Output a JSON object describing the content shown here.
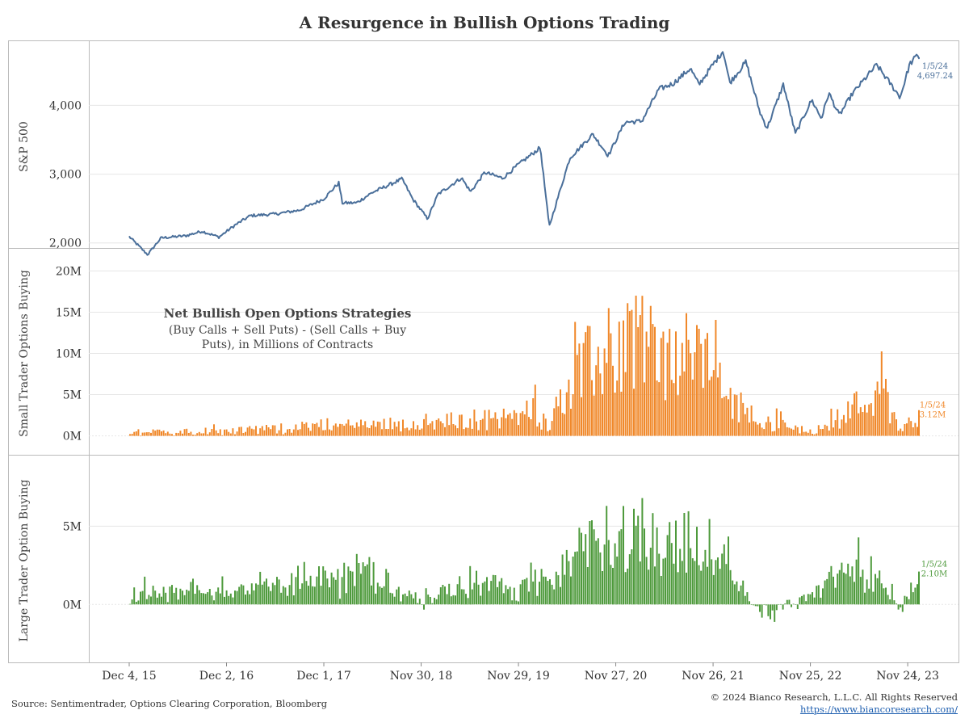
{
  "title": "A Resurgence in Bullish Options Trading",
  "footer": {
    "source": "Source: Sentimentrader, Options Clearing Corporation, Bloomberg",
    "copyright": "© 2024 Bianco Research, L.L.C. All Rights Reserved",
    "url": "https://www.biancoresearch.com/"
  },
  "colors": {
    "sp500": "#4a6f9a",
    "small": "#f0882a",
    "large": "#4e9a3c",
    "grid": "#e6e6e6",
    "frame": "#bbbbbb"
  },
  "chart_data": [
    {
      "type": "line",
      "name": "sp500_panel",
      "ylabel": "S&P 500",
      "yticks": [
        2000,
        3000,
        4000
      ],
      "ytick_labels": [
        "2,000",
        "3,000",
        "4,000"
      ],
      "ylim": [
        1950,
        4850
      ],
      "xlim": [
        "2015-12-04",
        "2024-01-05"
      ],
      "grid": true,
      "end_label": {
        "date": "1/5/24",
        "value": "4,697.24"
      },
      "series": [
        {
          "x": [
            "2015-12-04",
            "2016-02-11",
            "2016-04-01",
            "2016-07-01",
            "2016-09-01",
            "2016-11-04",
            "2017-01-02",
            "2017-03-01",
            "2017-06-01",
            "2017-09-01",
            "2017-12-01",
            "2018-01-26",
            "2018-02-08",
            "2018-04-02",
            "2018-06-01",
            "2018-09-20",
            "2018-10-29",
            "2018-12-24",
            "2019-02-01",
            "2019-04-30",
            "2019-06-03",
            "2019-07-26",
            "2019-10-01",
            "2019-11-29",
            "2020-02-19",
            "2020-03-23",
            "2020-06-08",
            "2020-09-02",
            "2020-10-30",
            "2020-12-31",
            "2021-03-04",
            "2021-05-07",
            "2021-07-01",
            "2021-09-02",
            "2021-10-04",
            "2021-11-26",
            "2022-01-03",
            "2022-01-27",
            "2022-03-29",
            "2022-05-20",
            "2022-06-16",
            "2022-08-16",
            "2022-09-30",
            "2022-11-30",
            "2023-01-05",
            "2023-02-02",
            "2023-03-13",
            "2023-05-01",
            "2023-07-31",
            "2023-10-27",
            "2023-12-01",
            "2024-01-02",
            "2024-01-05"
          ],
          "y": [
            2092,
            1829,
            2073,
            2103,
            2170,
            2085,
            2257,
            2396,
            2420,
            2476,
            2642,
            2873,
            2581,
            2582,
            2734,
            2930,
            2641,
            2351,
            2707,
            2945,
            2744,
            3025,
            2940,
            3140,
            3386,
            2237,
            3232,
            3580,
            3270,
            3756,
            3768,
            4232,
            4320,
            4537,
            4300,
            4595,
            4796,
            4326,
            4631,
            3901,
            3667,
            4305,
            3585,
            4080,
            3808,
            4179,
            3855,
            4169,
            4588,
            4117,
            4594,
            4742,
            4697
          ]
        }
      ]
    },
    {
      "type": "bar",
      "name": "small_trader_panel",
      "ylabel": "Small Trader Options Buying",
      "yticks": [
        0,
        5,
        10,
        15,
        20
      ],
      "ytick_labels": [
        "0M",
        "5M",
        "10M",
        "15M",
        "20M"
      ],
      "ylim": [
        -2,
        22
      ],
      "units": "millions of contracts",
      "annotation": {
        "title": "Net Bullish Open Options Strategies",
        "line1": "(Buy Calls + Sell Puts) - (Sell Calls + Buy",
        "line2": "Puts), in Millions of Contracts"
      },
      "end_label": {
        "date": "1/5/24",
        "value": "3.12M"
      },
      "anchors": {
        "x": [
          "2015-12-04",
          "2016-12-02",
          "2017-12-01",
          "2018-11-30",
          "2019-11-29",
          "2020-01-24",
          "2020-03-20",
          "2020-06-12",
          "2020-10-30",
          "2021-01-29",
          "2021-06-01",
          "2021-11-26",
          "2022-02-01",
          "2022-06-01",
          "2022-11-25",
          "2023-02-10",
          "2023-05-01",
          "2023-08-01",
          "2023-10-27",
          "2024-01-05"
        ],
        "y": [
          0.4,
          0.8,
          1.4,
          1.8,
          2.6,
          4.0,
          1.5,
          8.0,
          12.0,
          14.5,
          10.5,
          11.5,
          4.5,
          2.0,
          0.5,
          1.8,
          4.0,
          6.5,
          1.0,
          3.12
        ]
      }
    },
    {
      "type": "bar",
      "name": "large_trader_panel",
      "ylabel": "Large Trader Option Buying",
      "yticks": [
        0,
        5
      ],
      "ytick_labels": [
        "0M",
        "5M"
      ],
      "ylim": [
        -3.6,
        9.2
      ],
      "units": "millions of contracts",
      "end_label": {
        "date": "1/5/24",
        "value": "2.10M"
      },
      "anchors": {
        "x": [
          "2015-12-04",
          "2016-12-02",
          "2017-12-01",
          "2018-05-01",
          "2018-11-30",
          "2019-04-01",
          "2019-11-29",
          "2020-01-24",
          "2020-03-20",
          "2020-06-12",
          "2020-10-30",
          "2021-01-29",
          "2021-06-01",
          "2021-11-26",
          "2022-02-01",
          "2022-06-01",
          "2022-11-25",
          "2023-02-10",
          "2023-06-01",
          "2023-08-01",
          "2023-10-27",
          "2024-01-05"
        ],
        "y": [
          0.6,
          1.1,
          2.0,
          2.3,
          0.1,
          1.4,
          1.2,
          2.3,
          1.4,
          3.0,
          5.2,
          5.6,
          4.5,
          4.0,
          2.0,
          -0.8,
          0.5,
          1.8,
          3.0,
          2.2,
          -0.3,
          2.1
        ]
      }
    }
  ],
  "x_axis": {
    "tick_dates": [
      "2015-12-04",
      "2016-12-02",
      "2017-12-01",
      "2018-11-30",
      "2019-11-29",
      "2020-11-27",
      "2021-11-26",
      "2022-11-25",
      "2023-11-24"
    ],
    "tick_labels": [
      "Dec 4, 15",
      "Dec 2, 16",
      "Dec 1, 17",
      "Nov 30, 18",
      "Nov 29, 19",
      "Nov 27, 20",
      "Nov 26, 21",
      "Nov 25, 22",
      "Nov 24, 23"
    ]
  }
}
